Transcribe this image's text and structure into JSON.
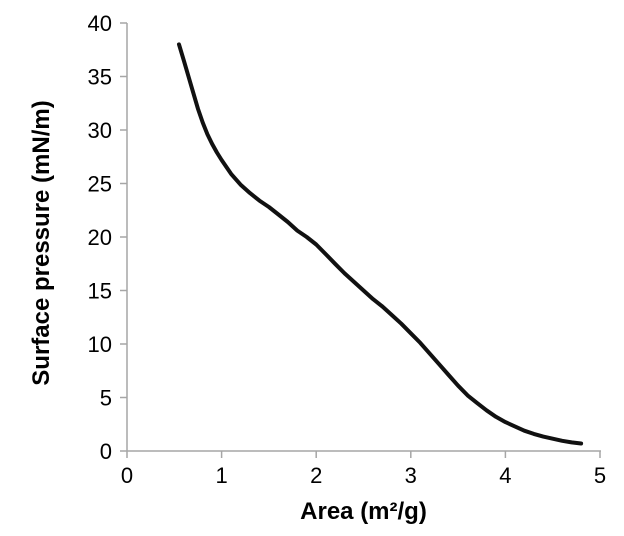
{
  "figure": {
    "background": "#ffffff"
  },
  "chart_data": {
    "type": "line",
    "title": "",
    "xlabel": "Area (m²/g)",
    "ylabel": "Surface pressure (mN/m)",
    "xlim": [
      0,
      5
    ],
    "ylim": [
      0,
      40
    ],
    "x_ticks": [
      0,
      1,
      2,
      3,
      4,
      5
    ],
    "y_ticks": [
      0,
      5,
      10,
      15,
      20,
      25,
      30,
      35,
      40
    ],
    "grid": false,
    "legend": "none",
    "axis_color": "#a6a6a6",
    "text_color": "#000000",
    "series": [
      {
        "name": "surface-pressure-isotherm",
        "color": "#111111",
        "line_width": 4,
        "x": [
          0.55,
          0.6,
          0.65,
          0.7,
          0.75,
          0.8,
          0.85,
          0.9,
          0.95,
          1.0,
          1.1,
          1.2,
          1.3,
          1.4,
          1.5,
          1.6,
          1.7,
          1.8,
          1.9,
          2.0,
          2.1,
          2.2,
          2.3,
          2.4,
          2.5,
          2.6,
          2.7,
          2.8,
          2.9,
          3.0,
          3.1,
          3.2,
          3.3,
          3.4,
          3.5,
          3.6,
          3.7,
          3.8,
          3.9,
          4.0,
          4.1,
          4.2,
          4.3,
          4.4,
          4.5,
          4.6,
          4.7,
          4.8
        ],
        "y": [
          38.0,
          36.5,
          35.0,
          33.5,
          32.0,
          30.7,
          29.6,
          28.7,
          27.9,
          27.2,
          25.9,
          24.9,
          24.1,
          23.4,
          22.8,
          22.1,
          21.4,
          20.6,
          20.0,
          19.3,
          18.4,
          17.5,
          16.6,
          15.8,
          15.0,
          14.2,
          13.5,
          12.7,
          11.9,
          11.0,
          10.1,
          9.1,
          8.1,
          7.1,
          6.1,
          5.2,
          4.5,
          3.8,
          3.2,
          2.7,
          2.3,
          1.9,
          1.6,
          1.35,
          1.15,
          0.95,
          0.8,
          0.7
        ]
      }
    ]
  }
}
